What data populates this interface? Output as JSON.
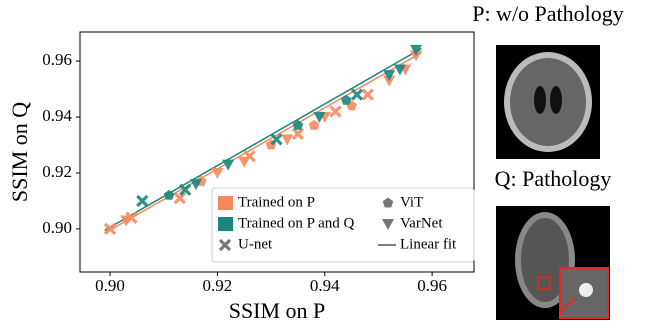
{
  "chart_data": {
    "type": "scatter",
    "xlabel": "SSIM on P",
    "ylabel": "SSIM on Q",
    "xlim": [
      0.8944,
      0.9678
    ],
    "ylim": [
      0.8846,
      0.9704
    ],
    "xticks": [
      {
        "value": 0.9,
        "label": "0.90"
      },
      0.92,
      0.94,
      0.96
    ],
    "yticks": [
      {
        "value": 0.9,
        "label": "0.90"
      },
      0.92,
      0.94,
      0.96
    ],
    "training": [
      {
        "name": "Trained on P",
        "color": "#f7885e"
      },
      {
        "name": "Trained on P and Q",
        "color": "#17877a"
      }
    ],
    "models": [
      {
        "name": "U-net",
        "marker": "x"
      },
      {
        "name": "ViT",
        "marker": "pentagon"
      },
      {
        "name": "VarNet",
        "marker": "triangle_down"
      }
    ],
    "fit_name": "Linear fit",
    "series": [
      {
        "training": 0,
        "model": 0,
        "x": [
          0.9,
          0.904,
          0.913,
          0.926,
          0.935,
          0.942,
          0.948
        ],
        "y": [
          0.9,
          0.904,
          0.911,
          0.926,
          0.934,
          0.942,
          0.948
        ]
      },
      {
        "training": 0,
        "model": 1,
        "x": [
          0.917,
          0.93,
          0.938,
          0.945
        ],
        "y": [
          0.917,
          0.93,
          0.937,
          0.944
        ]
      },
      {
        "training": 0,
        "model": 2,
        "x": [
          0.903,
          0.92,
          0.925,
          0.933,
          0.94,
          0.952,
          0.955,
          0.957
        ],
        "y": [
          0.903,
          0.92,
          0.924,
          0.932,
          0.94,
          0.953,
          0.957,
          0.962
        ]
      },
      {
        "training": 1,
        "model": 0,
        "x": [
          0.906,
          0.914,
          0.931,
          0.946
        ],
        "y": [
          0.91,
          0.914,
          0.932,
          0.948
        ]
      },
      {
        "training": 1,
        "model": 1,
        "x": [
          0.911,
          0.935,
          0.944
        ],
        "y": [
          0.912,
          0.937,
          0.946
        ]
      },
      {
        "training": 1,
        "model": 2,
        "x": [
          0.916,
          0.922,
          0.939,
          0.952,
          0.954,
          0.957
        ],
        "y": [
          0.916,
          0.923,
          0.94,
          0.955,
          0.957,
          0.964
        ]
      }
    ],
    "fits": [
      {
        "training": 0,
        "x": [
          0.899,
          0.958
        ],
        "y": [
          0.8985,
          0.963
        ]
      },
      {
        "training": 1,
        "x": [
          0.899,
          0.958
        ],
        "y": [
          0.8995,
          0.9645
        ]
      }
    ]
  },
  "images": [
    {
      "title": "P: w/o Pathology"
    },
    {
      "title": "Q: Pathology"
    }
  ]
}
